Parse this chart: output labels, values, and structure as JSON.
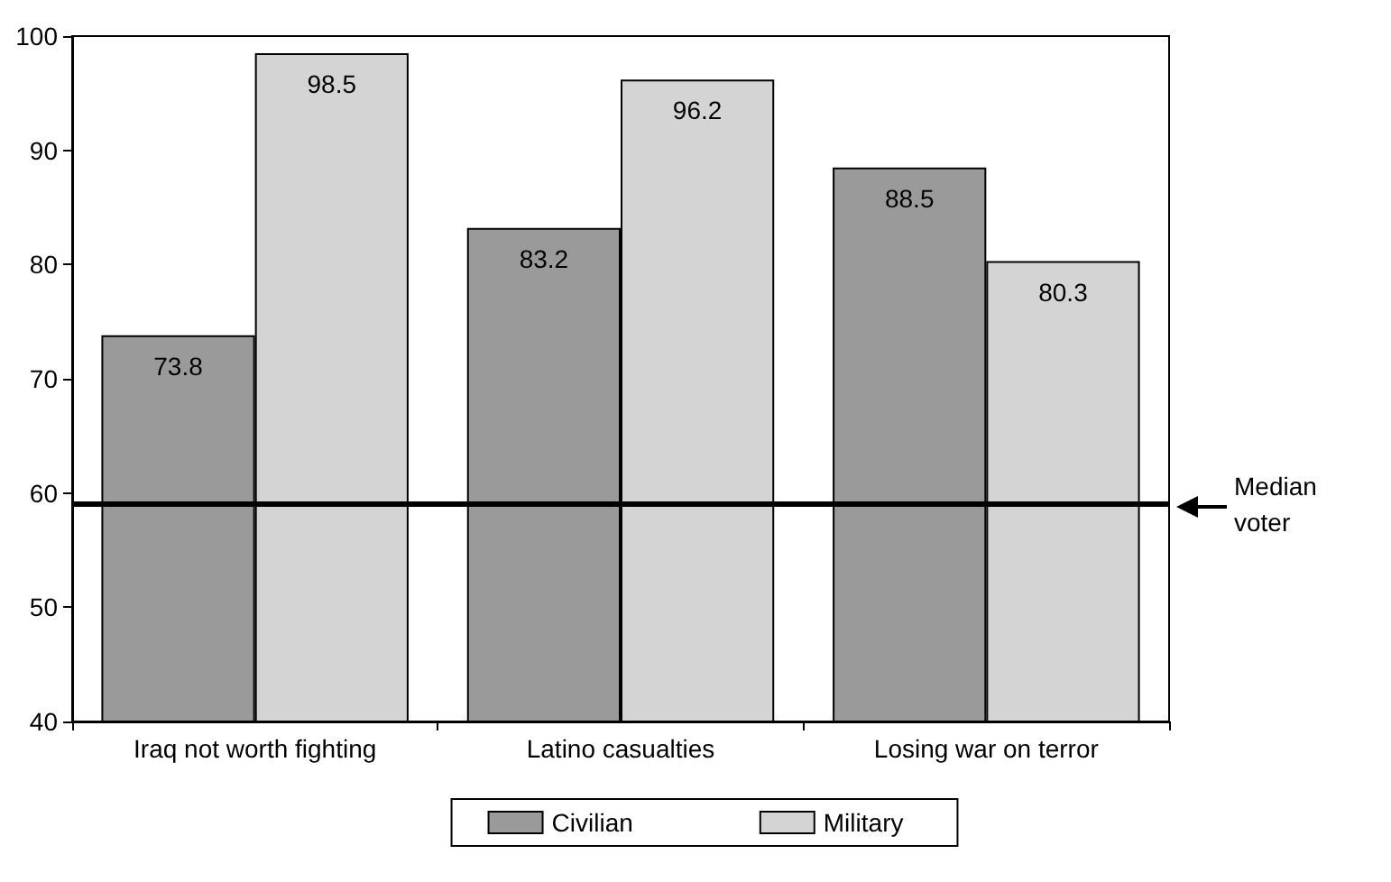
{
  "chart_data": {
    "type": "bar",
    "categories": [
      "Iraq not worth fighting",
      "Latino casualties",
      "Losing war on terror"
    ],
    "series": [
      {
        "name": "Civilian",
        "color": "#9a9a9a",
        "values": [
          73.8,
          83.2,
          88.5
        ]
      },
      {
        "name": "Military",
        "color": "#d4d4d4",
        "values": [
          98.5,
          96.2,
          80.3
        ]
      }
    ],
    "ylim": [
      40,
      100
    ],
    "yticks": [
      40,
      50,
      60,
      70,
      80,
      90,
      100
    ],
    "grid": false,
    "legend": "bottom",
    "data_labels": true,
    "ref_lines": [
      {
        "axis": "y",
        "value": 59,
        "label": "Median voter",
        "color": "#000000",
        "line_style": "solid"
      }
    ]
  }
}
